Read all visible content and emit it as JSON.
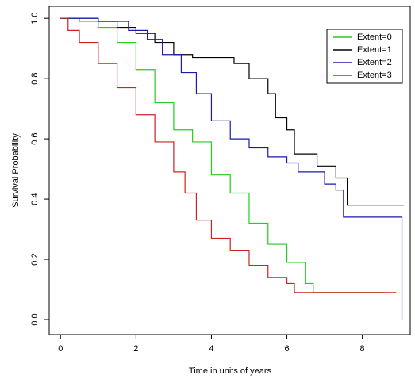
{
  "chart_data": {
    "type": "step",
    "xlabel": "Time in units of years",
    "ylabel": "Survival Probability",
    "xlim": [
      -0.3,
      9.27
    ],
    "ylim": [
      -0.05,
      1.04
    ],
    "xticks": [
      0,
      2,
      4,
      6,
      8
    ],
    "yticks": [
      {
        "value": 0,
        "label": "0.0"
      },
      0.2,
      0.4,
      0.6,
      0.8,
      {
        "value": 1,
        "label": "1.0"
      }
    ],
    "legend": "top-right",
    "series": [
      {
        "name": "Extent=0",
        "color": "#22cc22",
        "x": [
          0,
          0.5,
          1,
          1.5,
          2,
          2.5,
          3,
          3.5,
          4,
          4.5,
          5,
          5.5,
          6,
          6.5,
          6.7,
          8.6
        ],
        "values": [
          1,
          0.99,
          0.97,
          0.92,
          0.83,
          0.72,
          0.63,
          0.59,
          0.48,
          0.42,
          0.32,
          0.25,
          0.19,
          0.12,
          0.09,
          0.09
        ]
      },
      {
        "name": "Extent=1",
        "color": "#000000",
        "x": [
          0,
          1,
          1.5,
          2,
          2.5,
          3,
          3.5,
          4.4,
          4.6,
          5,
          5.5,
          5.7,
          6,
          6.2,
          6.8,
          7.3,
          7.6,
          9.1
        ],
        "values": [
          1,
          0.99,
          0.97,
          0.95,
          0.92,
          0.88,
          0.87,
          0.87,
          0.85,
          0.8,
          0.75,
          0.67,
          0.63,
          0.55,
          0.51,
          0.47,
          0.38,
          0.38
        ]
      },
      {
        "name": "Extent=2",
        "color": "#1a1aaa",
        "x": [
          0,
          1,
          1.8,
          2.3,
          2.7,
          3.2,
          3.6,
          4,
          4.5,
          5,
          5.5,
          6,
          6.3,
          7,
          7.3,
          7.5,
          9,
          9.05
        ],
        "values": [
          1,
          0.99,
          0.96,
          0.93,
          0.88,
          0.82,
          0.75,
          0.66,
          0.6,
          0.57,
          0.54,
          0.52,
          0.49,
          0.45,
          0.43,
          0.34,
          0.34,
          0
        ]
      },
      {
        "name": "Extent=3",
        "color": "#cc2222",
        "x": [
          0,
          0.2,
          0.5,
          1,
          1.5,
          2,
          2.5,
          3,
          3.3,
          3.6,
          4,
          4.5,
          5,
          5.5,
          6,
          6.2,
          8.9
        ],
        "values": [
          1,
          0.96,
          0.92,
          0.85,
          0.77,
          0.68,
          0.59,
          0.49,
          0.42,
          0.33,
          0.27,
          0.23,
          0.18,
          0.14,
          0.12,
          0.09,
          0.09
        ]
      }
    ]
  }
}
